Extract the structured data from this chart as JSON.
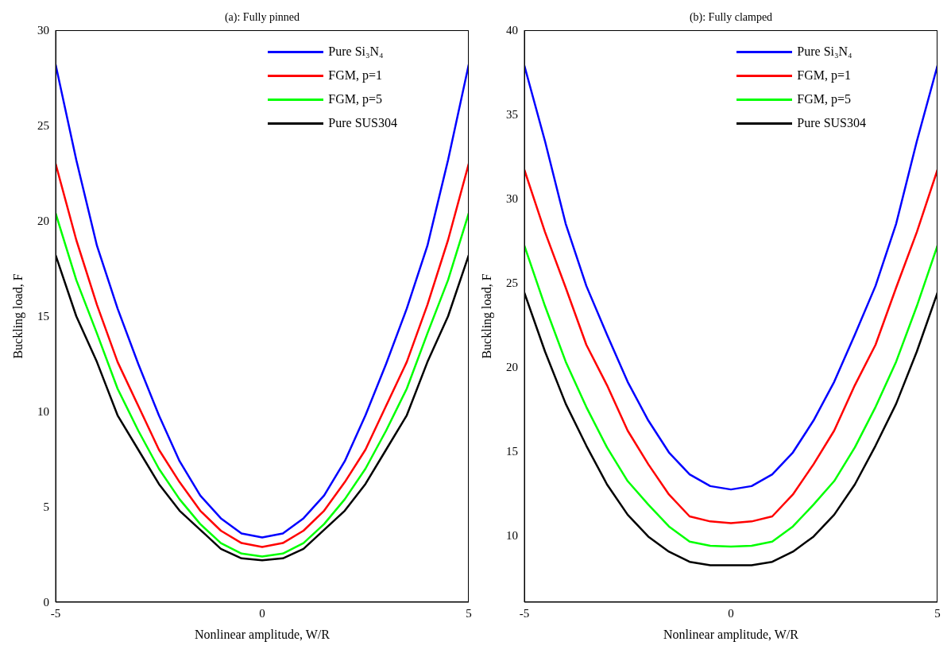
{
  "chart_data": [
    {
      "type": "line",
      "title": "(a): Fully pinned",
      "xlabel": "Nonlinear amplitude, W/R",
      "ylabel": "Buckling load, F",
      "x": [
        -5,
        -4.5,
        -4,
        -3.5,
        -3,
        -2.5,
        -2,
        -1.5,
        -1,
        -0.5,
        0,
        0.5,
        1,
        1.5,
        2,
        2.5,
        3,
        3.5,
        4,
        4.5,
        5
      ],
      "xlim": [
        -5,
        5
      ],
      "xticks": [
        -5,
        0,
        5
      ],
      "ylim": [
        0,
        30
      ],
      "yticks": [
        0,
        5,
        10,
        15,
        20,
        25,
        30
      ],
      "legend": "top right",
      "series": [
        {
          "name": "Pure Si₃N₄",
          "color": "#0000ff",
          "values": [
            28.2,
            23.2,
            18.7,
            15.4,
            12.5,
            9.8,
            7.4,
            5.6,
            4.4,
            3.6,
            3.4,
            3.6,
            4.4,
            5.6,
            7.4,
            9.8,
            12.5,
            15.4,
            18.7,
            23.2,
            28.2
          ]
        },
        {
          "name": "FGM, p=1",
          "color": "#ff0000",
          "values": [
            23.0,
            19.0,
            15.6,
            12.6,
            10.3,
            8.0,
            6.3,
            4.8,
            3.75,
            3.1,
            2.9,
            3.1,
            3.75,
            4.8,
            6.3,
            8.0,
            10.3,
            12.6,
            15.6,
            19.0,
            23.0
          ]
        },
        {
          "name": "FGM, p=5",
          "color": "#00ff00",
          "values": [
            20.4,
            16.9,
            14.1,
            11.2,
            9.0,
            7.0,
            5.4,
            4.1,
            3.1,
            2.55,
            2.4,
            2.55,
            3.1,
            4.1,
            5.4,
            7.0,
            9.0,
            11.2,
            14.1,
            16.9,
            20.4
          ]
        },
        {
          "name": "Pure SUS304",
          "color": "#000000",
          "values": [
            18.2,
            15.0,
            12.6,
            9.8,
            8.0,
            6.2,
            4.8,
            3.8,
            2.8,
            2.3,
            2.2,
            2.3,
            2.8,
            3.8,
            4.8,
            6.2,
            8.0,
            9.8,
            12.6,
            15.0,
            18.2
          ]
        }
      ]
    },
    {
      "type": "line",
      "title": "(b): Fully clamped",
      "xlabel": "Nonlinear amplitude, W/R",
      "ylabel": "Buckling load, F",
      "x": [
        -5,
        -4.5,
        -4,
        -3.5,
        -3,
        -2.5,
        -2,
        -1.5,
        -1,
        -0.5,
        0,
        0.5,
        1,
        1.5,
        2,
        2.5,
        3,
        3.5,
        4,
        4.5,
        5
      ],
      "xlim": [
        -5,
        5
      ],
      "xticks": [
        -5,
        0,
        5
      ],
      "ylim": [
        6,
        40
      ],
      "yticks": [
        10,
        15,
        20,
        25,
        30,
        35,
        40
      ],
      "legend": "top right",
      "series": [
        {
          "name": "Pure Si₃N₄",
          "color": "#0000ff",
          "values": [
            37.9,
            33.4,
            28.5,
            24.8,
            21.9,
            19.1,
            16.8,
            14.9,
            13.6,
            12.9,
            12.7,
            12.9,
            13.6,
            14.9,
            16.8,
            19.1,
            21.9,
            24.8,
            28.5,
            33.4,
            37.9
          ]
        },
        {
          "name": "FGM, p=1",
          "color": "#ff0000",
          "values": [
            31.7,
            28.0,
            24.7,
            21.3,
            18.9,
            16.2,
            14.2,
            12.4,
            11.1,
            10.8,
            10.7,
            10.8,
            11.1,
            12.4,
            14.2,
            16.2,
            18.9,
            21.3,
            24.7,
            28.0,
            31.7
          ]
        },
        {
          "name": "FGM, p=5",
          "color": "#00ff00",
          "values": [
            27.2,
            23.6,
            20.3,
            17.6,
            15.2,
            13.2,
            11.8,
            10.5,
            9.6,
            9.35,
            9.3,
            9.35,
            9.6,
            10.5,
            11.8,
            13.2,
            15.2,
            17.6,
            20.3,
            23.6,
            27.2
          ]
        },
        {
          "name": "Pure SUS304",
          "color": "#000000",
          "values": [
            24.4,
            20.9,
            17.8,
            15.3,
            13.0,
            11.2,
            9.9,
            9.0,
            8.4,
            8.2,
            8.2,
            8.2,
            8.4,
            9.0,
            9.9,
            11.2,
            13.0,
            15.3,
            17.8,
            20.9,
            24.4
          ]
        }
      ]
    }
  ]
}
